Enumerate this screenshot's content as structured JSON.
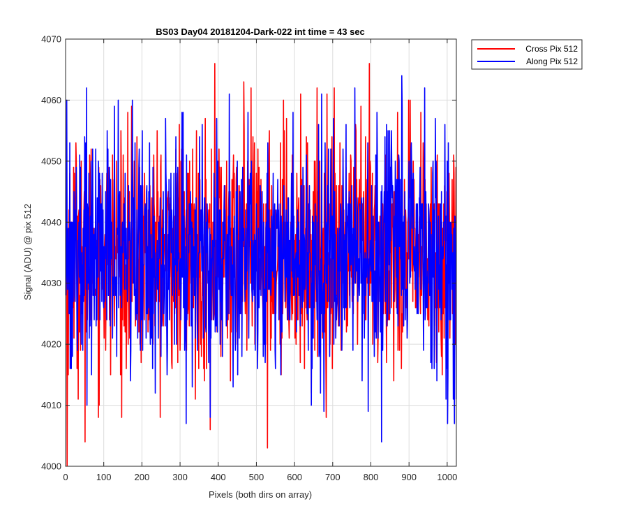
{
  "chart_data": {
    "type": "line",
    "title": "BS03 Day04 20181204-Dark-022 int time = 43 sec",
    "xlabel": "Pixels (both dirs on array)",
    "ylabel": "Signal (ADU) @ pix 512",
    "xlim": [
      0,
      1024
    ],
    "ylim": [
      4000,
      4070
    ],
    "xticks": [
      "0",
      "100",
      "200",
      "300",
      "400",
      "500",
      "600",
      "700",
      "800",
      "900",
      "1000"
    ],
    "yticks": [
      "4000",
      "4010",
      "4020",
      "4030",
      "4040",
      "4050",
      "4060",
      "4070"
    ],
    "grid": true,
    "legend_position": "outside-top-right",
    "series_summary": {
      "samples_per_series": 1024,
      "mean": 4035,
      "typical_range": [
        4020,
        4050
      ]
    },
    "series": [
      {
        "name": "Cross Pix 512",
        "color": "#ff0000",
        "extremes": [
          {
            "x": 3,
            "y": 4000
          },
          {
            "x": 50,
            "y": 4004
          },
          {
            "x": 390,
            "y": 4066
          },
          {
            "x": 378,
            "y": 4006
          },
          {
            "x": 528,
            "y": 4003
          },
          {
            "x": 795,
            "y": 4066
          },
          {
            "x": 703,
            "y": 4062
          },
          {
            "x": 466,
            "y": 4063
          },
          {
            "x": 570,
            "y": 4060
          }
        ]
      },
      {
        "name": "Along Pix 512",
        "color": "#0000ff",
        "extremes": [
          {
            "x": 2,
            "y": 4060
          },
          {
            "x": 54,
            "y": 4062
          },
          {
            "x": 137,
            "y": 4060
          },
          {
            "x": 315,
            "y": 4007
          },
          {
            "x": 827,
            "y": 4004
          },
          {
            "x": 880,
            "y": 4064
          },
          {
            "x": 940,
            "y": 4062
          },
          {
            "x": 1000,
            "y": 4007
          },
          {
            "x": 1018,
            "y": 4007
          }
        ]
      }
    ]
  }
}
